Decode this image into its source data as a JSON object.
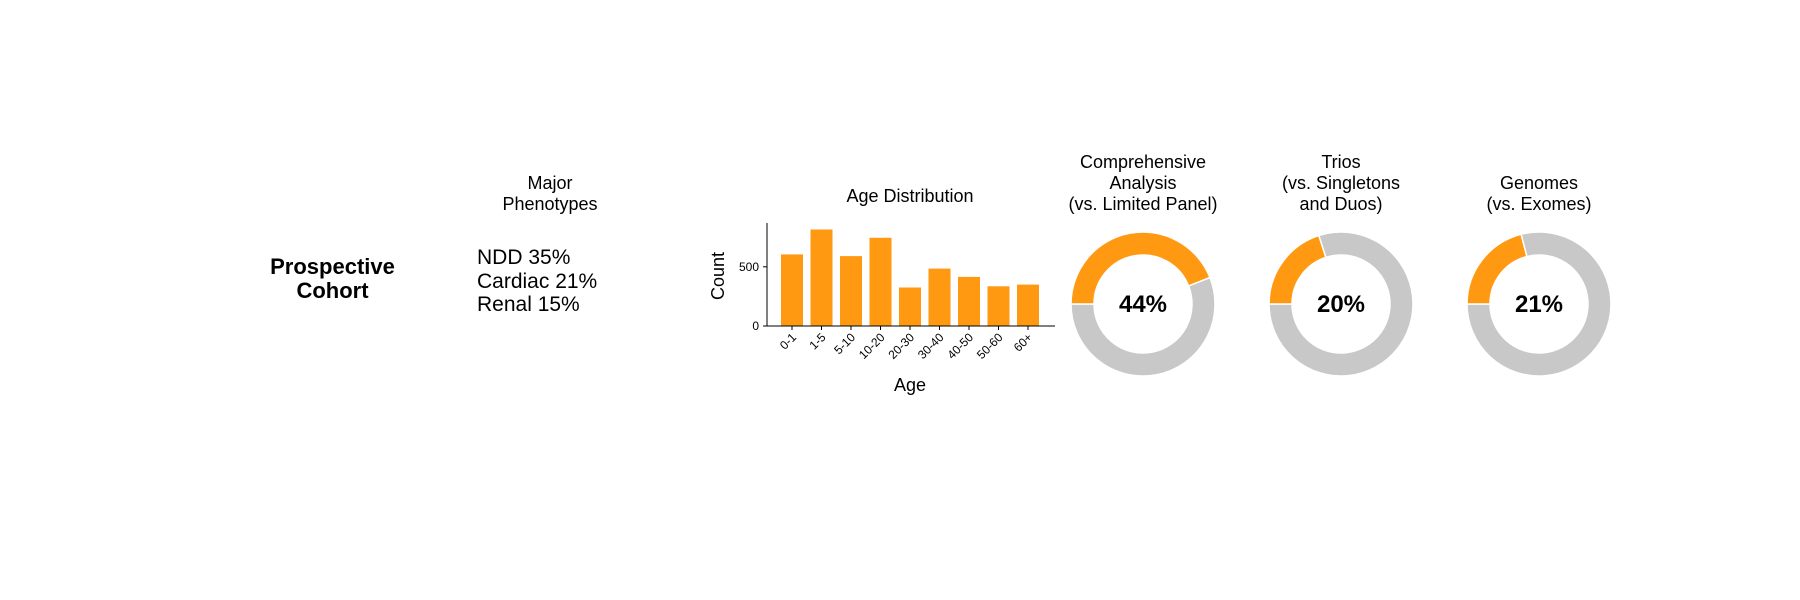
{
  "cohort": {
    "label_line1": "Prospective",
    "label_line2": "Cohort"
  },
  "phenotypes": {
    "title_line1": "Major",
    "title_line2": "Phenotypes",
    "items": [
      "NDD 35%",
      "Cardiac 21%",
      "Renal 15%"
    ]
  },
  "colors": {
    "accent": "#FF9912",
    "neutral": "#C8C8C8",
    "text": "#000000"
  },
  "chart_data": [
    {
      "type": "bar",
      "title": "Age Distribution",
      "xlabel": "Age",
      "ylabel": "Count",
      "categories": [
        "0-1",
        "1-5",
        "5-10",
        "10-20",
        "20-30",
        "30-40",
        "40-50",
        "50-60",
        "60+"
      ],
      "values": [
        605,
        815,
        590,
        745,
        325,
        485,
        415,
        335,
        350
      ],
      "yticks": [
        "0",
        "500"
      ],
      "ylim": [
        0,
        870
      ],
      "grid": false
    },
    {
      "type": "pie",
      "title_lines": [
        "Comprehensive",
        "Analysis",
        "(vs. Limited Panel)"
      ],
      "center_label": "44%",
      "value": 44
    },
    {
      "type": "pie",
      "title_lines": [
        "Trios",
        "(vs. Singletons",
        "and Duos)"
      ],
      "center_label": "20%",
      "value": 20
    },
    {
      "type": "pie",
      "title_lines": [
        "Genomes",
        "(vs. Exomes)"
      ],
      "center_label": "21%",
      "value": 21
    }
  ]
}
